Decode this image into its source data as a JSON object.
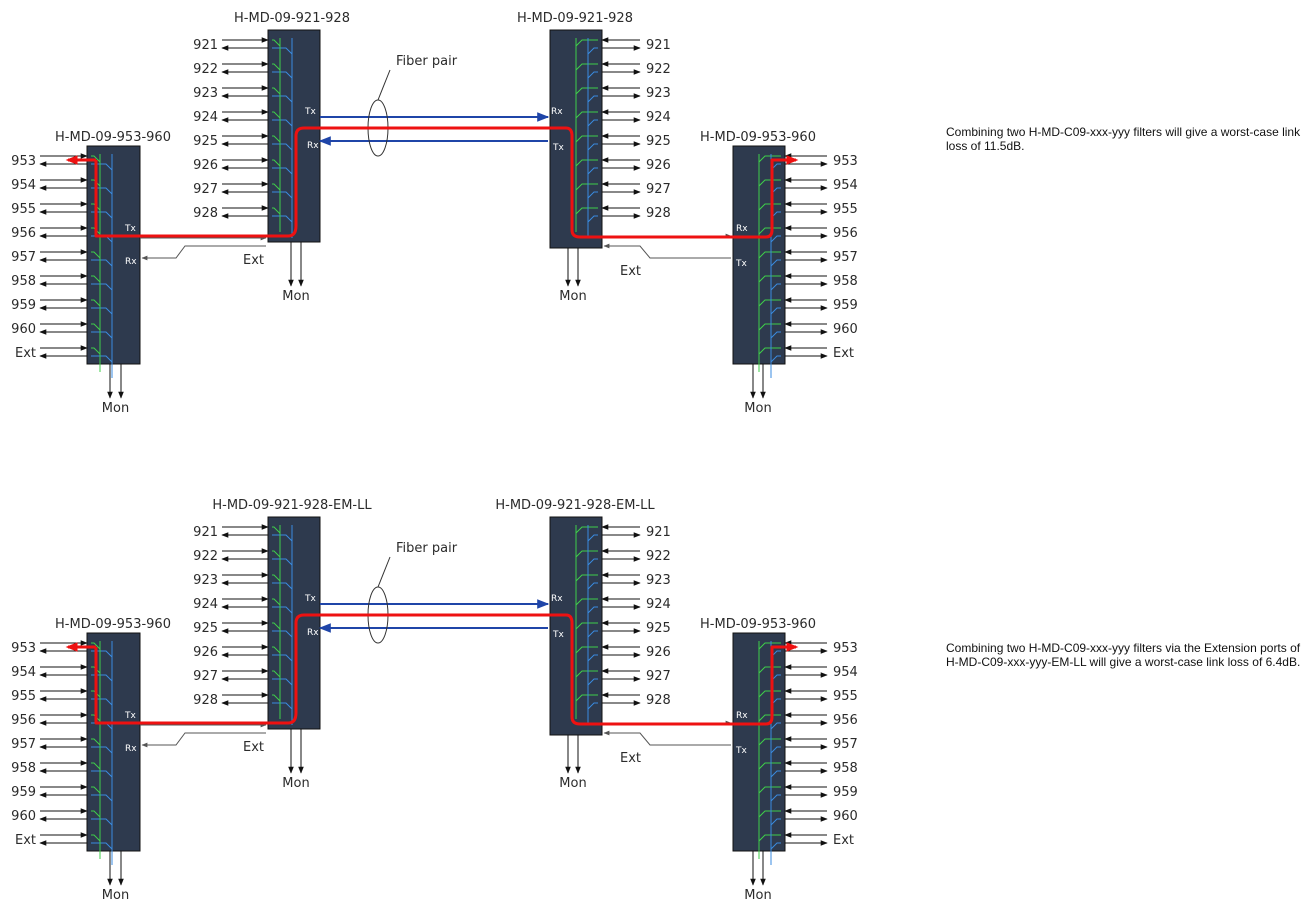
{
  "colors": {
    "module_fill": "#2e3a4e",
    "green": "#3fcf4a",
    "blue": "#3a8be0",
    "red": "#ee1111",
    "fiber": "#1f45a8",
    "arrow": "#111111"
  },
  "labels": {
    "fiber_pair": "Fiber pair",
    "tx": "Tx",
    "rx": "Rx",
    "ext": "Ext",
    "mon": "Mon"
  },
  "top_diagram": {
    "module_left_large": "H-MD-09-953-960",
    "module_left_small": "H-MD-09-921-928",
    "module_right_small": "H-MD-09-921-928",
    "module_right_large": "H-MD-09-953-960",
    "note": "Combining two H-MD-C09-xxx-yyy filters will give a worst-case link loss of 11.5dB."
  },
  "bottom_diagram": {
    "module_left_large": "H-MD-09-953-960",
    "module_left_small": "H-MD-09-921-928-EM-LL",
    "module_right_small": "H-MD-09-921-928-EM-LL",
    "module_right_large": "H-MD-09-953-960",
    "note": "Combining two H-MD-C09-xxx-yyy filters via the Extension ports of H-MD-C09-xxx-yyy-EM-LL will give a worst-case link loss of 6.4dB."
  },
  "ports_small": [
    "921",
    "922",
    "923",
    "924",
    "925",
    "926",
    "927",
    "928"
  ],
  "ports_large": [
    "953",
    "954",
    "955",
    "956",
    "957",
    "958",
    "959",
    "960",
    "Ext"
  ]
}
